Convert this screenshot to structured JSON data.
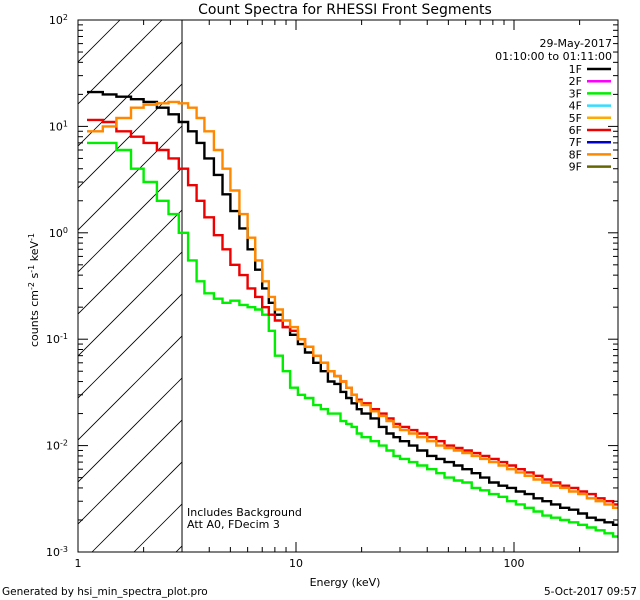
{
  "chart_data": {
    "type": "line",
    "title": "Count Spectra for RHESSI Front Segments",
    "xlabel": "Energy (keV)",
    "ylabel": {
      "prefix": "counts cm",
      "exp1": "-2",
      "mid": " s",
      "exp2": "-1",
      "mid2": " keV",
      "exp3": "-1"
    },
    "xscale": "log",
    "yscale": "log",
    "xlim": [
      1.0,
      300.0
    ],
    "ylim": [
      0.001,
      100.0
    ],
    "xticks_major": [
      {
        "value": 1,
        "label": "1"
      },
      {
        "value": 10,
        "label": "10"
      },
      {
        "value": 100,
        "label": "100"
      }
    ],
    "yticks_major": [
      {
        "value": 0.001,
        "base": "10",
        "exp": "-3"
      },
      {
        "value": 0.01,
        "base": "10",
        "exp": "-2"
      },
      {
        "value": 0.1,
        "base": "10",
        "exp": "-1"
      },
      {
        "value": 1,
        "base": "10",
        "exp": "0"
      },
      {
        "value": 10,
        "base": "10",
        "exp": "1"
      },
      {
        "value": 100,
        "base": "10",
        "exp": "2"
      }
    ],
    "date": "29-May-2017",
    "time_range": "01:10:00 to 01:11:00",
    "excluded_region": {
      "x_range": [
        1.0,
        3.0
      ],
      "style": "hatched"
    },
    "annotations": [
      "Includes Background",
      "Att A0, FDecim 3"
    ],
    "legend": [
      {
        "label": "1F",
        "color": "#000000"
      },
      {
        "label": "2F",
        "color": "#ff00ff"
      },
      {
        "label": "3F",
        "color": "#00ee00"
      },
      {
        "label": "4F",
        "color": "#33ddff"
      },
      {
        "label": "5F",
        "color": "#ffaa00"
      },
      {
        "label": "6F",
        "color": "#ee0000"
      },
      {
        "label": "7F",
        "color": "#0000cc"
      },
      {
        "label": "8F",
        "color": "#ff8800"
      },
      {
        "label": "9F",
        "color": "#666600"
      }
    ],
    "series": [
      {
        "name": "1F",
        "color": "#000000",
        "points": [
          [
            1.1,
            21
          ],
          [
            1.3,
            20
          ],
          [
            1.5,
            19
          ],
          [
            1.75,
            18
          ],
          [
            2.0,
            17
          ],
          [
            2.3,
            15
          ],
          [
            2.6,
            13
          ],
          [
            2.9,
            11
          ],
          [
            3.2,
            9
          ],
          [
            3.5,
            7
          ],
          [
            3.8,
            5
          ],
          [
            4.2,
            3.5
          ],
          [
            4.6,
            2.3
          ],
          [
            5.0,
            1.6
          ],
          [
            5.5,
            1.1
          ],
          [
            6.0,
            0.7
          ],
          [
            6.5,
            0.45
          ],
          [
            7.0,
            0.3
          ],
          [
            7.5,
            0.22
          ],
          [
            8.0,
            0.17
          ],
          [
            8.7,
            0.13
          ],
          [
            9.4,
            0.11
          ],
          [
            10.2,
            0.09
          ],
          [
            11,
            0.075
          ],
          [
            12,
            0.06
          ],
          [
            13,
            0.05
          ],
          [
            14,
            0.04
          ],
          [
            15,
            0.038
          ],
          [
            16,
            0.032
          ],
          [
            17,
            0.028
          ],
          [
            18,
            0.025
          ],
          [
            19,
            0.022
          ],
          [
            20,
            0.02
          ],
          [
            22,
            0.018
          ],
          [
            24,
            0.015
          ],
          [
            26,
            0.013
          ],
          [
            28,
            0.012
          ],
          [
            30,
            0.011
          ],
          [
            33,
            0.01
          ],
          [
            36,
            0.009
          ],
          [
            40,
            0.008
          ],
          [
            44,
            0.0075
          ],
          [
            48,
            0.007
          ],
          [
            53,
            0.0065
          ],
          [
            58,
            0.006
          ],
          [
            64,
            0.0055
          ],
          [
            70,
            0.005
          ],
          [
            77,
            0.0045
          ],
          [
            85,
            0.0042
          ],
          [
            93,
            0.004
          ],
          [
            102,
            0.0037
          ],
          [
            112,
            0.0035
          ],
          [
            123,
            0.0032
          ],
          [
            135,
            0.003
          ],
          [
            148,
            0.0028
          ],
          [
            163,
            0.0026
          ],
          [
            179,
            0.0025
          ],
          [
            197,
            0.0023
          ],
          [
            216,
            0.0021
          ],
          [
            237,
            0.002
          ],
          [
            260,
            0.0019
          ],
          [
            285,
            0.0018
          ]
        ]
      },
      {
        "name": "3F",
        "color": "#00ee00",
        "points": [
          [
            1.1,
            7
          ],
          [
            1.3,
            7
          ],
          [
            1.5,
            6
          ],
          [
            1.75,
            4
          ],
          [
            2.0,
            3
          ],
          [
            2.3,
            2
          ],
          [
            2.6,
            1.5
          ],
          [
            2.9,
            1.0
          ],
          [
            3.2,
            0.55
          ],
          [
            3.5,
            0.35
          ],
          [
            3.8,
            0.27
          ],
          [
            4.2,
            0.24
          ],
          [
            4.6,
            0.22
          ],
          [
            5.0,
            0.23
          ],
          [
            5.5,
            0.21
          ],
          [
            6.0,
            0.2
          ],
          [
            6.5,
            0.19
          ],
          [
            7.0,
            0.17
          ],
          [
            7.5,
            0.12
          ],
          [
            8.0,
            0.07
          ],
          [
            8.7,
            0.05
          ],
          [
            9.4,
            0.035
          ],
          [
            10.2,
            0.03
          ],
          [
            11,
            0.028
          ],
          [
            12,
            0.024
          ],
          [
            13,
            0.022
          ],
          [
            14,
            0.02
          ],
          [
            15,
            0.02
          ],
          [
            16,
            0.017
          ],
          [
            17,
            0.016
          ],
          [
            18,
            0.015
          ],
          [
            19,
            0.013
          ],
          [
            20,
            0.012
          ],
          [
            22,
            0.011
          ],
          [
            24,
            0.01
          ],
          [
            26,
            0.009
          ],
          [
            28,
            0.008
          ],
          [
            30,
            0.0075
          ],
          [
            33,
            0.007
          ],
          [
            36,
            0.0065
          ],
          [
            40,
            0.006
          ],
          [
            44,
            0.0055
          ],
          [
            48,
            0.005
          ],
          [
            53,
            0.0047
          ],
          [
            58,
            0.0045
          ],
          [
            64,
            0.004
          ],
          [
            70,
            0.0038
          ],
          [
            77,
            0.0035
          ],
          [
            85,
            0.0033
          ],
          [
            93,
            0.003
          ],
          [
            102,
            0.0028
          ],
          [
            112,
            0.0026
          ],
          [
            123,
            0.0024
          ],
          [
            135,
            0.0022
          ],
          [
            148,
            0.0021
          ],
          [
            163,
            0.002
          ],
          [
            179,
            0.0019
          ],
          [
            197,
            0.0018
          ],
          [
            216,
            0.0017
          ],
          [
            237,
            0.0016
          ],
          [
            260,
            0.0015
          ],
          [
            285,
            0.0014
          ]
        ]
      },
      {
        "name": "6F",
        "color": "#ee0000",
        "points": [
          [
            1.1,
            11.5
          ],
          [
            1.3,
            11
          ],
          [
            1.5,
            9
          ],
          [
            1.75,
            8
          ],
          [
            2.0,
            7
          ],
          [
            2.3,
            6
          ],
          [
            2.6,
            5
          ],
          [
            2.9,
            4
          ],
          [
            3.2,
            2.8
          ],
          [
            3.5,
            2.0
          ],
          [
            3.8,
            1.4
          ],
          [
            4.2,
            0.95
          ],
          [
            4.6,
            0.7
          ],
          [
            5.0,
            0.5
          ],
          [
            5.5,
            0.4
          ],
          [
            6.0,
            0.3
          ],
          [
            6.5,
            0.25
          ],
          [
            7.0,
            0.2
          ],
          [
            7.5,
            0.17
          ],
          [
            8.0,
            0.15
          ],
          [
            8.7,
            0.13
          ],
          [
            9.4,
            0.12
          ],
          [
            10.2,
            0.1
          ],
          [
            11,
            0.085
          ],
          [
            12,
            0.07
          ],
          [
            13,
            0.06
          ],
          [
            14,
            0.05
          ],
          [
            15,
            0.045
          ],
          [
            16,
            0.04
          ],
          [
            17,
            0.035
          ],
          [
            18,
            0.03
          ],
          [
            19,
            0.027
          ],
          [
            20,
            0.025
          ],
          [
            22,
            0.022
          ],
          [
            24,
            0.02
          ],
          [
            26,
            0.018
          ],
          [
            28,
            0.016
          ],
          [
            30,
            0.015
          ],
          [
            33,
            0.014
          ],
          [
            36,
            0.013
          ],
          [
            40,
            0.012
          ],
          [
            44,
            0.011
          ],
          [
            48,
            0.01
          ],
          [
            53,
            0.0095
          ],
          [
            58,
            0.009
          ],
          [
            64,
            0.0085
          ],
          [
            70,
            0.008
          ],
          [
            77,
            0.0075
          ],
          [
            85,
            0.007
          ],
          [
            93,
            0.0065
          ],
          [
            102,
            0.006
          ],
          [
            112,
            0.0056
          ],
          [
            123,
            0.0052
          ],
          [
            135,
            0.0048
          ],
          [
            148,
            0.0045
          ],
          [
            163,
            0.0042
          ],
          [
            179,
            0.004
          ],
          [
            197,
            0.0037
          ],
          [
            216,
            0.0035
          ],
          [
            237,
            0.0032
          ],
          [
            260,
            0.003
          ],
          [
            285,
            0.0028
          ]
        ]
      },
      {
        "name": "8F",
        "color": "#ff8800",
        "points": [
          [
            1.1,
            9
          ],
          [
            1.3,
            10
          ],
          [
            1.5,
            12
          ],
          [
            1.75,
            15
          ],
          [
            2.0,
            16
          ],
          [
            2.3,
            16.5
          ],
          [
            2.6,
            17
          ],
          [
            2.9,
            16.5
          ],
          [
            3.2,
            15
          ],
          [
            3.5,
            12
          ],
          [
            3.8,
            9
          ],
          [
            4.2,
            6
          ],
          [
            4.6,
            4
          ],
          [
            5.0,
            2.5
          ],
          [
            5.5,
            1.5
          ],
          [
            6.0,
            0.9
          ],
          [
            6.5,
            0.55
          ],
          [
            7.0,
            0.35
          ],
          [
            7.5,
            0.25
          ],
          [
            8.0,
            0.19
          ],
          [
            8.7,
            0.15
          ],
          [
            9.4,
            0.13
          ],
          [
            10.2,
            0.1
          ],
          [
            11,
            0.085
          ],
          [
            12,
            0.07
          ],
          [
            13,
            0.06
          ],
          [
            14,
            0.05
          ],
          [
            15,
            0.045
          ],
          [
            16,
            0.04
          ],
          [
            17,
            0.035
          ],
          [
            18,
            0.03
          ],
          [
            19,
            0.026
          ],
          [
            20,
            0.024
          ],
          [
            22,
            0.021
          ],
          [
            24,
            0.019
          ],
          [
            26,
            0.017
          ],
          [
            28,
            0.015
          ],
          [
            30,
            0.014
          ],
          [
            33,
            0.013
          ],
          [
            36,
            0.012
          ],
          [
            40,
            0.011
          ],
          [
            44,
            0.01
          ],
          [
            48,
            0.0095
          ],
          [
            53,
            0.009
          ],
          [
            58,
            0.0085
          ],
          [
            64,
            0.008
          ],
          [
            70,
            0.0075
          ],
          [
            77,
            0.007
          ],
          [
            85,
            0.0065
          ],
          [
            93,
            0.006
          ],
          [
            102,
            0.0056
          ],
          [
            112,
            0.0052
          ],
          [
            123,
            0.0048
          ],
          [
            135,
            0.0045
          ],
          [
            148,
            0.0042
          ],
          [
            163,
            0.004
          ],
          [
            179,
            0.0037
          ],
          [
            197,
            0.0035
          ],
          [
            216,
            0.0032
          ],
          [
            237,
            0.003
          ],
          [
            260,
            0.0028
          ],
          [
            285,
            0.0026
          ]
        ]
      }
    ]
  },
  "footer": {
    "generated_by": "Generated by hsi_min_spectra_plot.pro",
    "timestamp": "5-Oct-2017 09:57"
  }
}
